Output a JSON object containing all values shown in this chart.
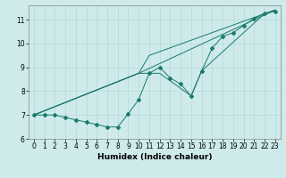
{
  "xlabel": "Humidex (Indice chaleur)",
  "background_color": "#ceeaea",
  "grid_color": "#b8d8d8",
  "line_color": "#1a7a6e",
  "xlim": [
    -0.5,
    23.5
  ],
  "ylim": [
    6.0,
    11.6
  ],
  "yticks": [
    6,
    7,
    8,
    9,
    10,
    11
  ],
  "xticks": [
    0,
    1,
    2,
    3,
    4,
    5,
    6,
    7,
    8,
    9,
    10,
    11,
    12,
    13,
    14,
    15,
    16,
    17,
    18,
    19,
    20,
    21,
    22,
    23
  ],
  "series1_x": [
    0,
    1,
    2,
    3,
    4,
    5,
    6,
    7,
    8,
    9,
    10,
    11,
    12,
    13,
    14,
    15,
    16,
    17,
    18,
    19,
    20,
    21,
    22,
    23
  ],
  "series1_y": [
    7.0,
    7.0,
    7.0,
    6.9,
    6.8,
    6.7,
    6.6,
    6.5,
    6.5,
    7.05,
    7.65,
    8.75,
    9.0,
    8.55,
    8.3,
    7.8,
    8.85,
    9.8,
    10.3,
    10.45,
    10.75,
    11.05,
    11.25,
    11.35
  ],
  "series2_x": [
    0,
    10,
    11,
    22,
    23
  ],
  "series2_y": [
    7.0,
    8.75,
    9.5,
    11.25,
    11.4
  ],
  "series3_x": [
    0,
    10,
    12,
    15,
    16,
    22,
    23
  ],
  "series3_y": [
    7.0,
    8.75,
    8.75,
    7.8,
    8.85,
    11.25,
    11.4
  ],
  "series4_x": [
    0,
    10,
    23
  ],
  "series4_y": [
    7.0,
    8.75,
    11.4
  ],
  "xlabel_fontsize": 6.5,
  "tick_fontsize": 5.5
}
